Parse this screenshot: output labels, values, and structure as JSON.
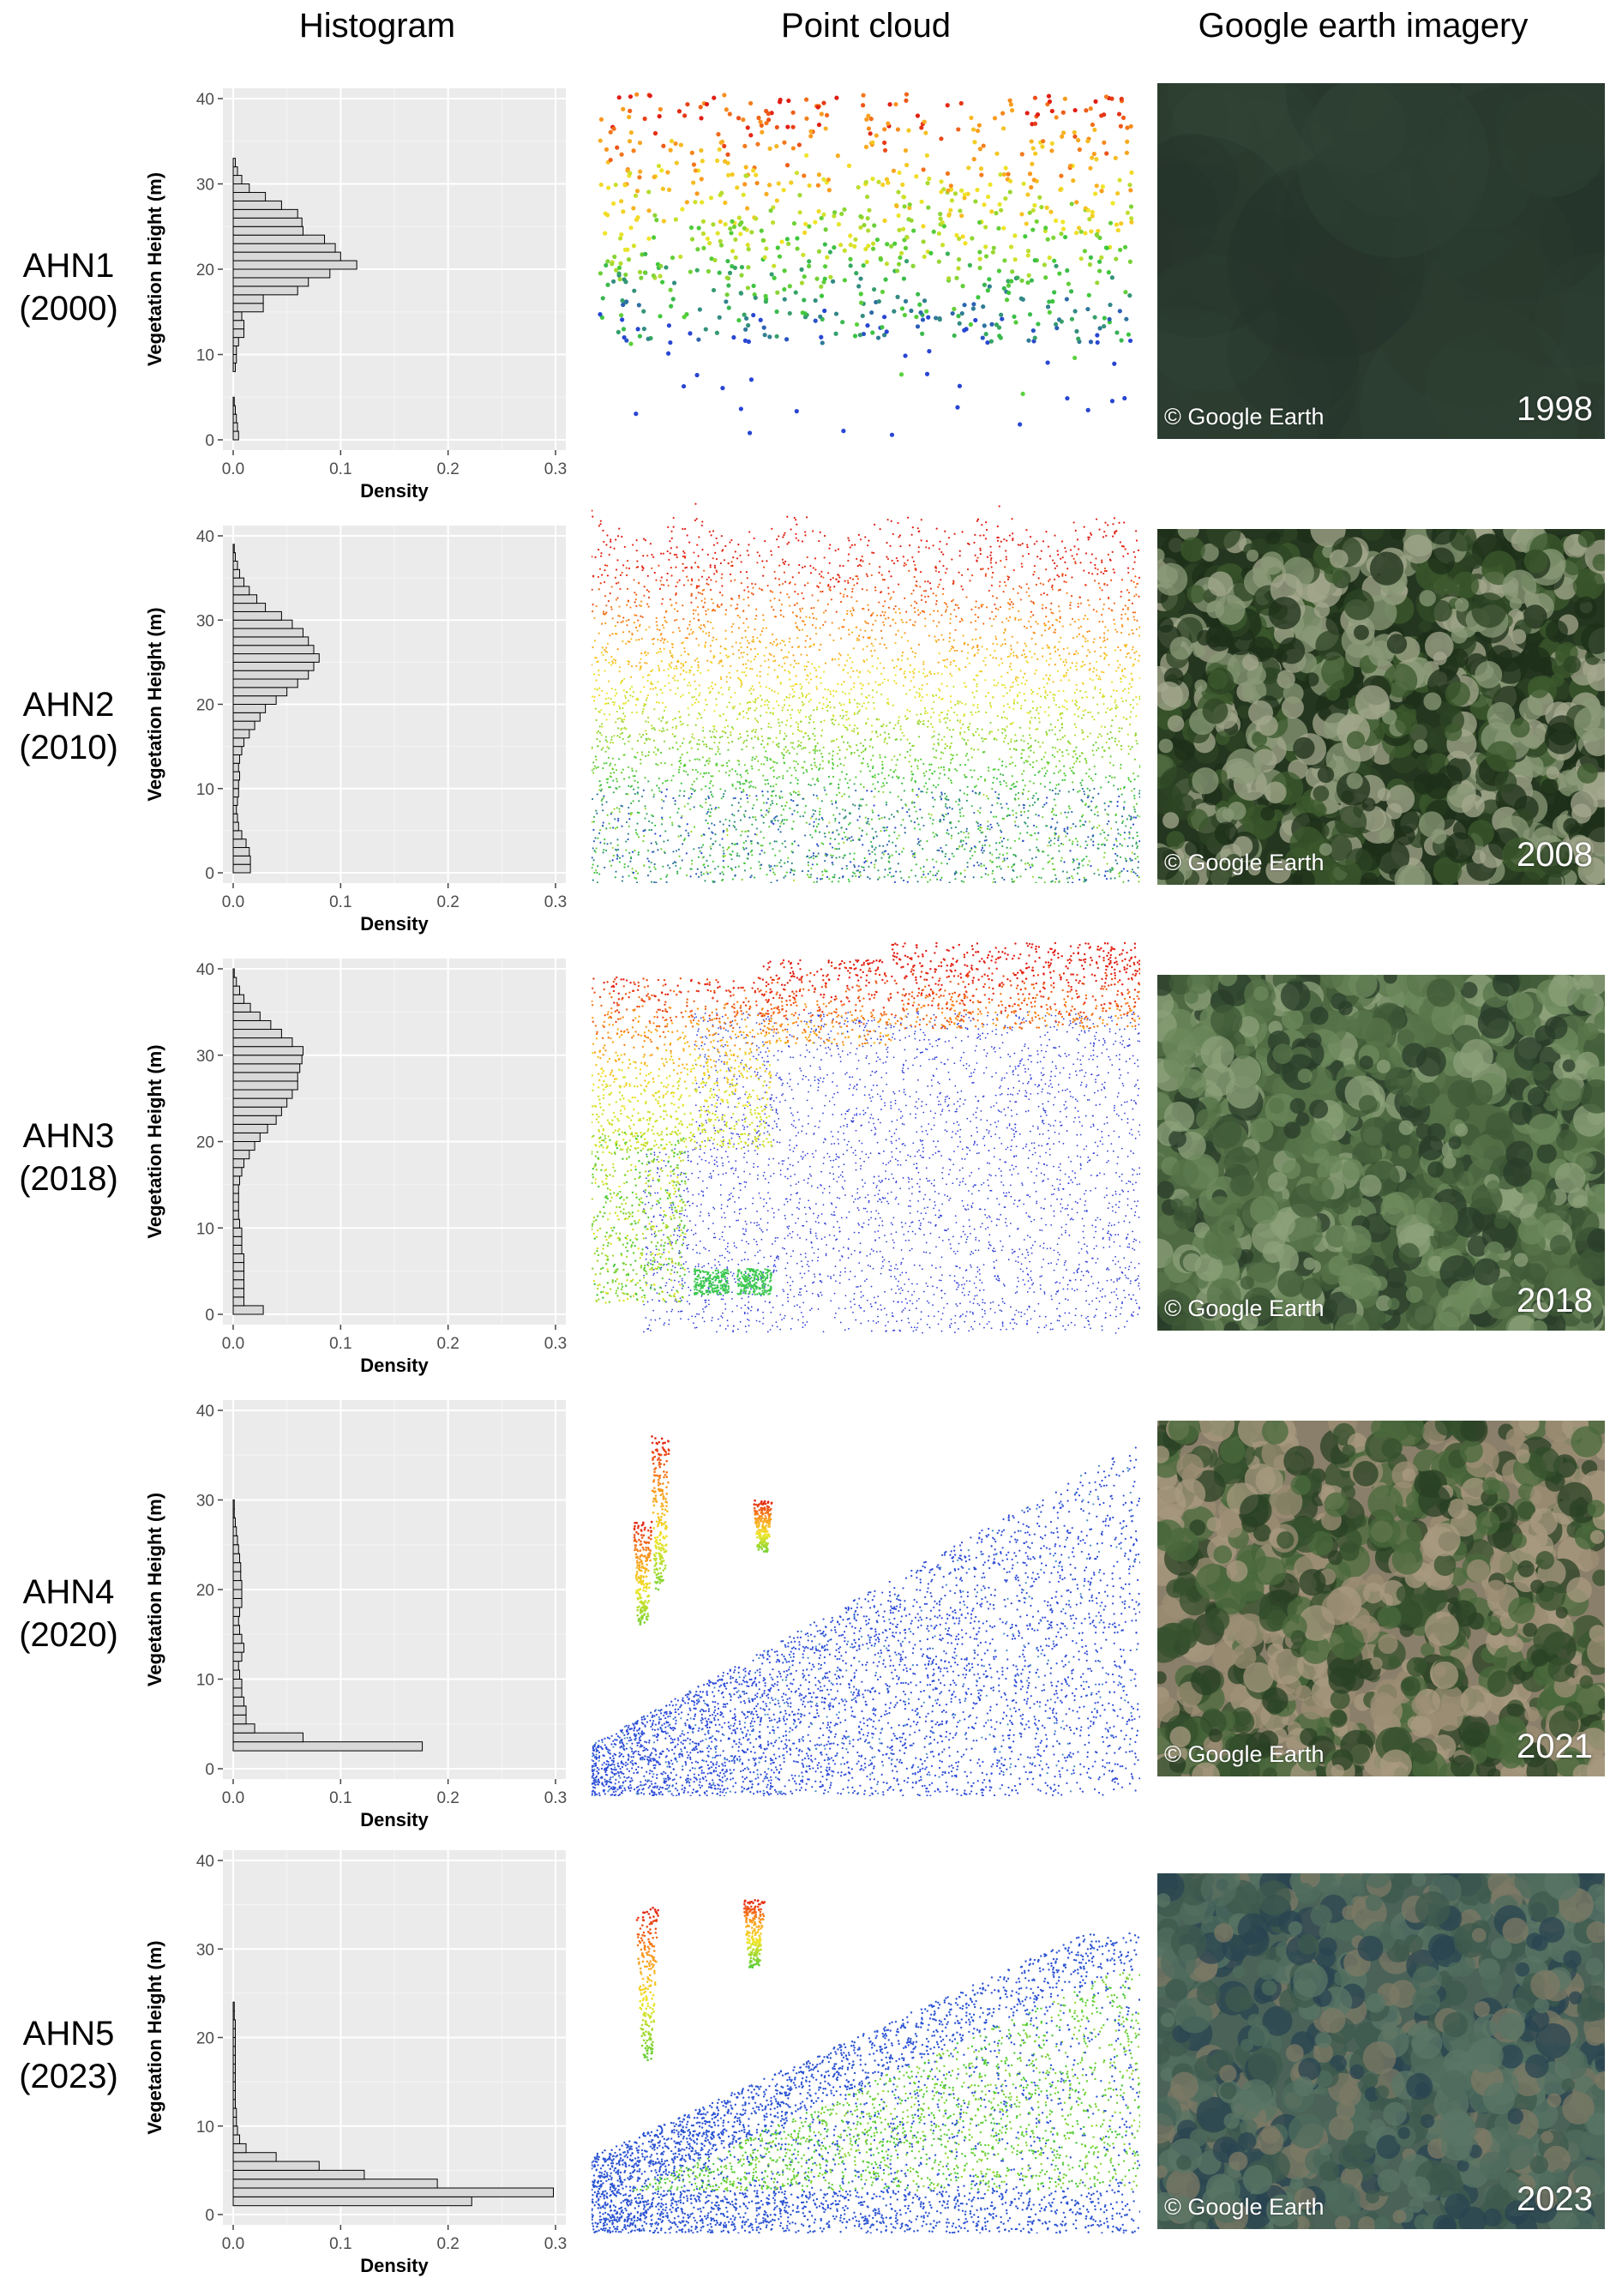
{
  "columns": {
    "histogram": "Histogram",
    "point_cloud": "Point cloud",
    "imagery": "Google earth imagery"
  },
  "rows": [
    {
      "dataset": "AHN1",
      "year": "(2000)",
      "credit": "© Google Earth",
      "imagery_year": "1998"
    },
    {
      "dataset": "AHN2",
      "year": "(2010)",
      "credit": "© Google Earth",
      "imagery_year": "2008"
    },
    {
      "dataset": "AHN3",
      "year": "(2018)",
      "credit": "© Google Earth",
      "imagery_year": "2018"
    },
    {
      "dataset": "AHN4",
      "year": "(2020)",
      "credit": "© Google Earth",
      "imagery_year": "2021"
    },
    {
      "dataset": "AHN5",
      "year": "(2023)",
      "credit": "© Google Earth",
      "imagery_year": "2023"
    }
  ],
  "chart_data": [
    {
      "type": "bar",
      "orientation": "horizontal",
      "xlabel": "Density",
      "ylabel": "Vegetation Height (m)",
      "xlim": [
        0,
        0.3
      ],
      "ylim": [
        0,
        40
      ],
      "xticks": [
        "0.0",
        "0.1",
        "0.2",
        "0.3"
      ],
      "yticks": [
        "0",
        "10",
        "20",
        "30",
        "40"
      ],
      "bin_width_m": 1,
      "bins": [
        0,
        1,
        2,
        3,
        4,
        5,
        6,
        7,
        8,
        9,
        10,
        11,
        12,
        13,
        14,
        15,
        16,
        17,
        18,
        19,
        20,
        21,
        22,
        23,
        24,
        25,
        26,
        27,
        28,
        29,
        30,
        31,
        32,
        33,
        34,
        35
      ],
      "values": [
        0.005,
        0.004,
        0.003,
        0.002,
        0.001,
        0,
        0,
        0,
        0.002,
        0.003,
        0.003,
        0.005,
        0.01,
        0.01,
        0.008,
        0.028,
        0.028,
        0.06,
        0.07,
        0.09,
        0.115,
        0.1,
        0.095,
        0.085,
        0.065,
        0.064,
        0.06,
        0.045,
        0.03,
        0.015,
        0.008,
        0.004,
        0.002,
        0,
        0,
        0
      ],
      "grid": true
    },
    {
      "type": "bar",
      "orientation": "horizontal",
      "xlabel": "Density",
      "ylabel": "Vegetation Height (m)",
      "xlim": [
        0,
        0.3
      ],
      "ylim": [
        0,
        40
      ],
      "xticks": [
        "0.0",
        "0.1",
        "0.2",
        "0.3"
      ],
      "yticks": [
        "0",
        "10",
        "20",
        "30",
        "40"
      ],
      "bin_width_m": 1,
      "bins": [
        0,
        1,
        2,
        3,
        4,
        5,
        6,
        7,
        8,
        9,
        10,
        11,
        12,
        13,
        14,
        15,
        16,
        17,
        18,
        19,
        20,
        21,
        22,
        23,
        24,
        25,
        26,
        27,
        28,
        29,
        30,
        31,
        32,
        33,
        34,
        35,
        36,
        37,
        38
      ],
      "values": [
        0.016,
        0.016,
        0.015,
        0.012,
        0.008,
        0.005,
        0.004,
        0.003,
        0.004,
        0.005,
        0.005,
        0.006,
        0.005,
        0.006,
        0.008,
        0.01,
        0.015,
        0.02,
        0.025,
        0.03,
        0.04,
        0.05,
        0.06,
        0.07,
        0.075,
        0.08,
        0.075,
        0.07,
        0.065,
        0.055,
        0.045,
        0.03,
        0.022,
        0.015,
        0.01,
        0.006,
        0.004,
        0.002,
        0.001
      ],
      "grid": true
    },
    {
      "type": "bar",
      "orientation": "horizontal",
      "xlabel": "Density",
      "ylabel": "Vegetation Height (m)",
      "xlim": [
        0,
        0.3
      ],
      "ylim": [
        0,
        40
      ],
      "xticks": [
        "0.0",
        "0.1",
        "0.2",
        "0.3"
      ],
      "yticks": [
        "0",
        "10",
        "20",
        "30",
        "40"
      ],
      "bin_width_m": 1,
      "bins": [
        0,
        1,
        2,
        3,
        4,
        5,
        6,
        7,
        8,
        9,
        10,
        11,
        12,
        13,
        14,
        15,
        16,
        17,
        18,
        19,
        20,
        21,
        22,
        23,
        24,
        25,
        26,
        27,
        28,
        29,
        30,
        31,
        32,
        33,
        34,
        35,
        36,
        37,
        38,
        39
      ],
      "values": [
        0.028,
        0.01,
        0.01,
        0.01,
        0.01,
        0.01,
        0.01,
        0.008,
        0.008,
        0.008,
        0.006,
        0.005,
        0.005,
        0.005,
        0.005,
        0.006,
        0.008,
        0.01,
        0.015,
        0.02,
        0.025,
        0.032,
        0.04,
        0.045,
        0.05,
        0.055,
        0.06,
        0.06,
        0.062,
        0.064,
        0.065,
        0.055,
        0.045,
        0.035,
        0.025,
        0.016,
        0.01,
        0.006,
        0.003,
        0.001
      ],
      "grid": true
    },
    {
      "type": "bar",
      "orientation": "horizontal",
      "xlabel": "Density",
      "ylabel": "Vegetation Height (m)",
      "xlim": [
        0,
        0.3
      ],
      "ylim": [
        0,
        40
      ],
      "xticks": [
        "0.0",
        "0.1",
        "0.2",
        "0.3"
      ],
      "yticks": [
        "0",
        "10",
        "20",
        "30",
        "40"
      ],
      "bin_width_m": 1,
      "bins": [
        0,
        1,
        2,
        3,
        4,
        5,
        6,
        7,
        8,
        9,
        10,
        11,
        12,
        13,
        14,
        15,
        16,
        17,
        18,
        19,
        20,
        21,
        22,
        23,
        24,
        25,
        26,
        27,
        28,
        29,
        30,
        31,
        32,
        33,
        34,
        35,
        36,
        37,
        38,
        39
      ],
      "values": [
        0,
        0,
        0.176,
        0.065,
        0.02,
        0.012,
        0.012,
        0.01,
        0.008,
        0.008,
        0.006,
        0.005,
        0.008,
        0.01,
        0.008,
        0.006,
        0.005,
        0.006,
        0.008,
        0.008,
        0.008,
        0.007,
        0.007,
        0.006,
        0.005,
        0.004,
        0.003,
        0.002,
        0.001,
        0.001,
        0,
        0,
        0,
        0,
        0,
        0,
        0,
        0,
        0,
        0
      ],
      "grid": true
    },
    {
      "type": "bar",
      "orientation": "horizontal",
      "xlabel": "Density",
      "ylabel": "Vegetation Height (m)",
      "xlim": [
        0,
        0.3
      ],
      "ylim": [
        0,
        40
      ],
      "xticks": [
        "0.0",
        "0.1",
        "0.2",
        "0.3"
      ],
      "yticks": [
        "0",
        "10",
        "20",
        "30",
        "40"
      ],
      "bin_width_m": 1,
      "bins": [
        0,
        1,
        2,
        3,
        4,
        5,
        6,
        7,
        8,
        9,
        10,
        11,
        12,
        13,
        14,
        15,
        16,
        17,
        18,
        19,
        20,
        21,
        22,
        23,
        24,
        25,
        26,
        27,
        28,
        29,
        30,
        31,
        32,
        33,
        34,
        35,
        36,
        37,
        38,
        39
      ],
      "values": [
        0,
        0.222,
        0.298,
        0.19,
        0.122,
        0.08,
        0.04,
        0.012,
        0.006,
        0.004,
        0.003,
        0.003,
        0.002,
        0.002,
        0.002,
        0.002,
        0.002,
        0.002,
        0.002,
        0.002,
        0.002,
        0.002,
        0.001,
        0.001,
        0,
        0,
        0,
        0,
        0,
        0,
        0,
        0,
        0,
        0,
        0,
        0,
        0,
        0,
        0,
        0
      ],
      "grid": true
    }
  ]
}
